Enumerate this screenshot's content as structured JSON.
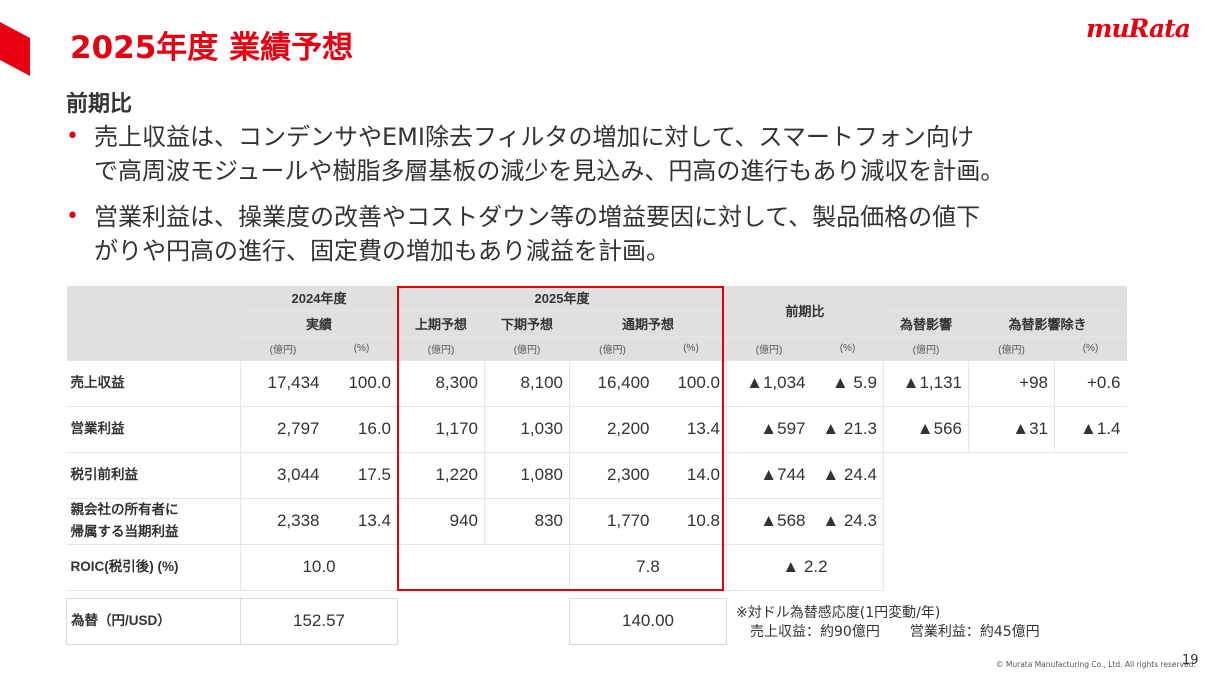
{
  "title": "2025年度 業績予想",
  "logo": "muRata",
  "section_heading": "前期比",
  "bullets": [
    {
      "line1": "売上収益は、コンデンサやEMI除去フィルタの増加に対して、スマートフォン向け",
      "line2": "で高周波モジュールや樹脂多層基板の減少を見込み、円高の進行もあり減収を計画。"
    },
    {
      "line1": "営業利益は、操業度の改善やコストダウン等の増益要因に対して、製品価格の値下",
      "line2": "がりや円高の進行、固定費の増加もあり減益を計画。"
    }
  ],
  "table": {
    "header": {
      "fy2024": "2024年度",
      "actual": "実績",
      "fy2025": "2025年度",
      "h1": "上期予想",
      "h2": "下期予想",
      "full": "通期予想",
      "yoy": "前期比",
      "fx_impact": "為替影響",
      "ex_fx": "為替影響除き"
    },
    "units": {
      "oku": "(億円)",
      "pct": "(%)"
    },
    "rows": [
      {
        "label": "売上収益",
        "v": [
          "17,434",
          "100.0",
          "8,300",
          "8,100",
          "16,400",
          "100.0",
          "▲1,034",
          "▲ 5.9",
          "▲1,131",
          "+98",
          "+0.6"
        ]
      },
      {
        "label": "営業利益",
        "v": [
          "2,797",
          "16.0",
          "1,170",
          "1,030",
          "2,200",
          "13.4",
          "▲597",
          "▲ 21.3",
          "▲566",
          "▲31",
          "▲1.4"
        ]
      },
      {
        "label": "税引前利益",
        "v": [
          "3,044",
          "17.5",
          "1,220",
          "1,080",
          "2,300",
          "14.0",
          "▲744",
          "▲ 24.4"
        ]
      },
      {
        "label_line1": "親会社の所有者に",
        "label_line2": "帰属する当期利益",
        "v": [
          "2,338",
          "13.4",
          "940",
          "830",
          "1,770",
          "10.8",
          "▲568",
          "▲ 24.3"
        ]
      }
    ],
    "roic": {
      "label": "ROIC(税引後) (%)",
      "fy2024": "10.0",
      "fy2025": "7.8",
      "yoy": "▲ 2.2"
    },
    "fx": {
      "label": "為替（円/USD）",
      "fy2024": "152.57",
      "fy2025": "140.00"
    }
  },
  "note": {
    "line1": "※対ドル為替感応度(1円変動/年)",
    "line2a": "売上収益：約90億円",
    "line2b": "営業利益：約45億円"
  },
  "copyright": "© Murata Manufacturing Co., Ltd. All rights reserved.",
  "page_number": "19",
  "colors": {
    "brand_red": "#e60012",
    "header_gray": "#e0e0e0",
    "text": "#333333"
  }
}
